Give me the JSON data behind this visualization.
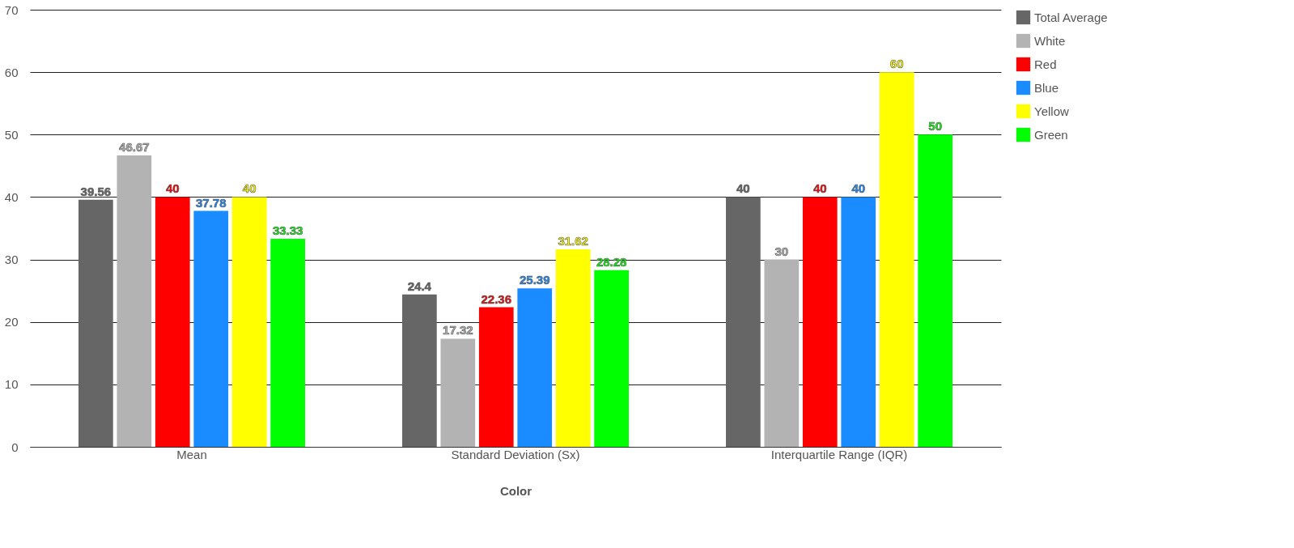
{
  "chart_data": {
    "type": "bar",
    "xlabel": "Color",
    "categories": [
      "Mean",
      "Standard Deviation (Sx)",
      "Interquartile Range (IQR)"
    ],
    "series": [
      {
        "name": "Total Average",
        "color": "#666666",
        "values": [
          39.56,
          24.4,
          40
        ]
      },
      {
        "name": "White",
        "color": "#b3b3b3",
        "values": [
          46.67,
          17.32,
          30
        ]
      },
      {
        "name": "Red",
        "color": "#ff0000",
        "values": [
          40,
          22.36,
          40
        ]
      },
      {
        "name": "Blue",
        "color": "#1a8cff",
        "values": [
          37.78,
          25.39,
          40
        ]
      },
      {
        "name": "Yellow",
        "color": "#ffff00",
        "values": [
          40,
          31.62,
          60
        ]
      },
      {
        "name": "Green",
        "color": "#00ff00",
        "values": [
          33.33,
          28.28,
          50
        ]
      }
    ],
    "ylim": [
      0,
      70
    ],
    "yticks": [
      0,
      10,
      20,
      30,
      40,
      50,
      60,
      70
    ],
    "grid": "y",
    "legend": "top right",
    "data_labels": true
  }
}
